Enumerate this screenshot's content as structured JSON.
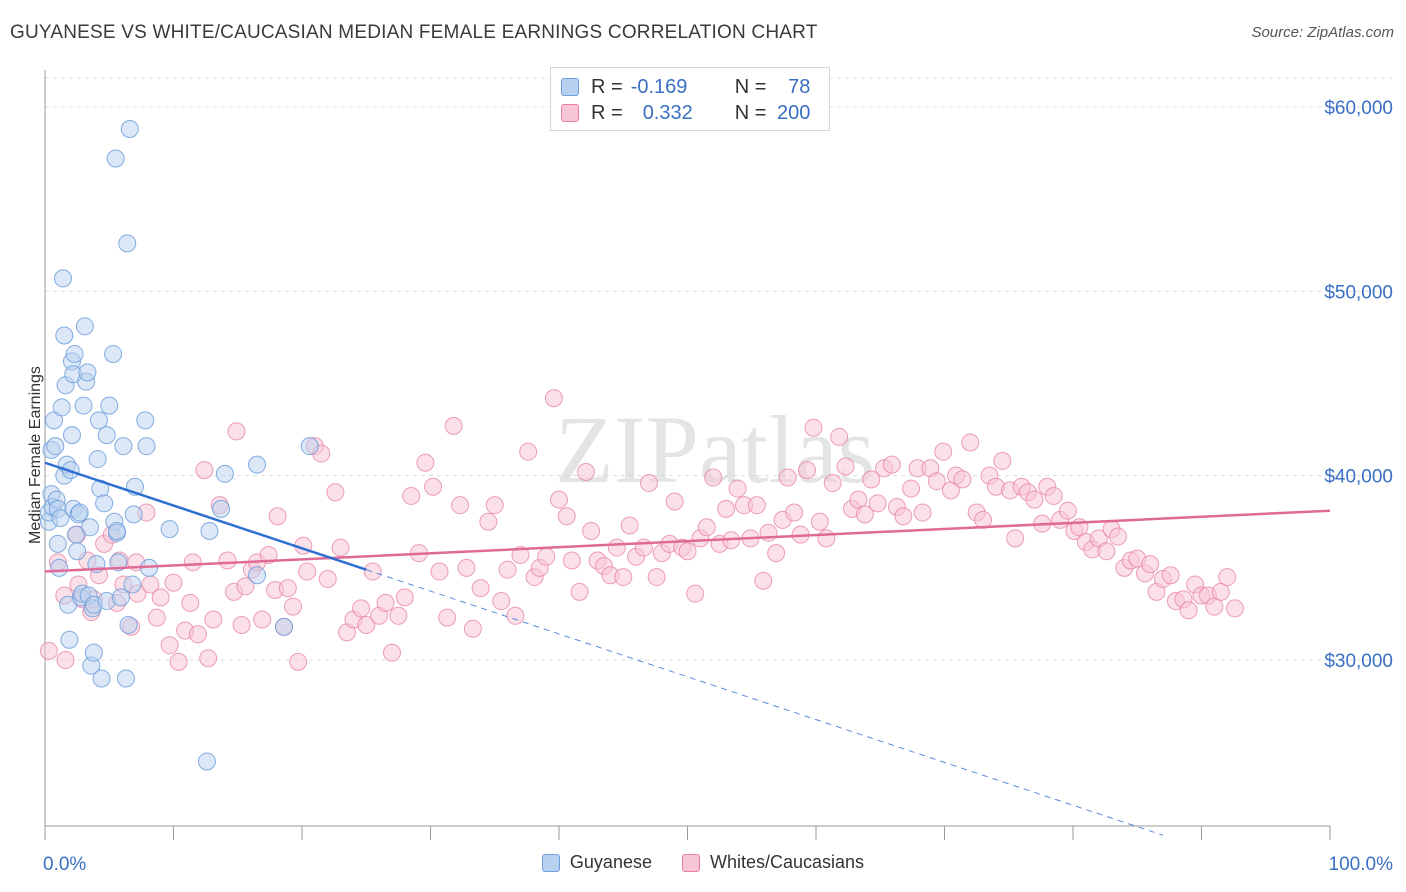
{
  "title": "GUYANESE VS WHITE/CAUCASIAN MEDIAN FEMALE EARNINGS CORRELATION CHART",
  "source": "Source: ZipAtlas.com",
  "watermark": "ZIPatlas",
  "colors": {
    "blue": "#6f9fdc",
    "blue_fill": "#b9d1f0",
    "blue_line": "#2f6fd0",
    "pink": "#e77fa3",
    "pink_fill": "#f7c6d6",
    "pink_line": "#e06a96",
    "tick_text": "#3a6fc4",
    "grid": "#dddddd"
  },
  "legend_top": [
    {
      "r_label": "R =",
      "r_value": "-0.169",
      "n_label": "N =",
      "n_value": "78"
    },
    {
      "r_label": "R =",
      "r_value": "0.332",
      "n_label": "N =",
      "n_value": "200"
    }
  ],
  "legend_bottom": [
    "Guyanese",
    "Whites/Caucasians"
  ],
  "chart_data": {
    "type": "scatter",
    "title": "GUYANESE VS WHITE/CAUCASIAN MEDIAN FEMALE EARNINGS CORRELATION CHART",
    "xlabel": "",
    "ylabel": "Median Female Earnings",
    "xlim": [
      0,
      100
    ],
    "ylim": [
      21000,
      62000
    ],
    "x_tick_labels": [
      "0.0%",
      "100.0%"
    ],
    "y_ticks": [
      30000,
      40000,
      50000,
      60000
    ],
    "y_tick_labels": [
      "$30,000",
      "$40,000",
      "$50,000",
      "$60,000"
    ],
    "grid": true,
    "legend_position": "top-center",
    "series": [
      {
        "name": "Guyanese",
        "color": "#6f9fdc",
        "trend": {
          "x": [
            0,
            25
          ],
          "y": [
            40700,
            34900
          ]
        },
        "trend_extension": {
          "x": [
            25,
            87
          ],
          "y": [
            34900,
            20500
          ]
        },
        "points": [
          [
            0.3,
            37500
          ],
          [
            0.3,
            38000
          ],
          [
            0.5,
            41400
          ],
          [
            0.5,
            39000
          ],
          [
            0.6,
            38300
          ],
          [
            0.7,
            43000
          ],
          [
            0.8,
            41600
          ],
          [
            0.9,
            38700
          ],
          [
            1,
            36300
          ],
          [
            1,
            38200
          ],
          [
            1.1,
            35000
          ],
          [
            1.2,
            37700
          ],
          [
            1.3,
            43700
          ],
          [
            1.4,
            50700
          ],
          [
            1.5,
            47600
          ],
          [
            1.5,
            40000
          ],
          [
            1.6,
            44900
          ],
          [
            1.7,
            40600
          ],
          [
            1.8,
            33000
          ],
          [
            1.9,
            31100
          ],
          [
            2,
            40300
          ],
          [
            2.1,
            42200
          ],
          [
            2.1,
            46200
          ],
          [
            2.2,
            45500
          ],
          [
            2.2,
            38200
          ],
          [
            2.3,
            46600
          ],
          [
            2.4,
            36800
          ],
          [
            2.5,
            35900
          ],
          [
            2.6,
            37900
          ],
          [
            2.7,
            38000
          ],
          [
            2.8,
            33400
          ],
          [
            2.9,
            33600
          ],
          [
            3,
            43800
          ],
          [
            3.1,
            48100
          ],
          [
            3.2,
            45100
          ],
          [
            3.3,
            45600
          ],
          [
            3.4,
            33500
          ],
          [
            3.5,
            37200
          ],
          [
            3.6,
            29700
          ],
          [
            3.7,
            32800
          ],
          [
            3.8,
            30400
          ],
          [
            3.8,
            33000
          ],
          [
            4,
            35200
          ],
          [
            4.1,
            40900
          ],
          [
            4.2,
            43000
          ],
          [
            4.3,
            39300
          ],
          [
            4.4,
            29000
          ],
          [
            4.6,
            38500
          ],
          [
            4.8,
            42200
          ],
          [
            4.8,
            33200
          ],
          [
            5,
            43800
          ],
          [
            5.3,
            46600
          ],
          [
            5.4,
            37500
          ],
          [
            5.5,
            57200
          ],
          [
            5.6,
            36900
          ],
          [
            5.6,
            37000
          ],
          [
            5.7,
            35300
          ],
          [
            5.9,
            33400
          ],
          [
            6.1,
            41600
          ],
          [
            6.3,
            29000
          ],
          [
            6.4,
            52600
          ],
          [
            6.5,
            31900
          ],
          [
            6.6,
            58800
          ],
          [
            6.8,
            34100
          ],
          [
            6.9,
            37900
          ],
          [
            7,
            39400
          ],
          [
            7.8,
            43000
          ],
          [
            7.9,
            41600
          ],
          [
            8.1,
            35000
          ],
          [
            9.7,
            37100
          ],
          [
            12.6,
            24500
          ],
          [
            12.8,
            37000
          ],
          [
            13.7,
            38200
          ],
          [
            14,
            40100
          ],
          [
            16.5,
            40600
          ],
          [
            16.5,
            34600
          ],
          [
            18.6,
            31800
          ],
          [
            20.6,
            41600
          ]
        ]
      },
      {
        "name": "Whites/Caucasians",
        "color": "#e77fa3",
        "trend": {
          "x": [
            0,
            100
          ],
          "y": [
            34800,
            38100
          ]
        },
        "points": [
          [
            0.3,
            30500
          ],
          [
            1,
            35300
          ],
          [
            1.5,
            33500
          ],
          [
            1.6,
            30000
          ],
          [
            2.5,
            36800
          ],
          [
            2.6,
            34100
          ],
          [
            2.9,
            33300
          ],
          [
            3.3,
            35400
          ],
          [
            3.6,
            32600
          ],
          [
            3.8,
            33300
          ],
          [
            4.2,
            34600
          ],
          [
            4.6,
            36300
          ],
          [
            5.2,
            36800
          ],
          [
            5.6,
            33100
          ],
          [
            5.8,
            35400
          ],
          [
            6.1,
            34100
          ],
          [
            6.7,
            31800
          ],
          [
            7.1,
            35300
          ],
          [
            7.2,
            33600
          ],
          [
            7.9,
            38000
          ],
          [
            8.2,
            34100
          ],
          [
            8.7,
            32300
          ],
          [
            9,
            33400
          ],
          [
            9.7,
            30800
          ],
          [
            10,
            34200
          ],
          [
            10.4,
            29900
          ],
          [
            10.9,
            31600
          ],
          [
            11.3,
            33100
          ],
          [
            11.5,
            35300
          ],
          [
            11.9,
            31400
          ],
          [
            12.4,
            40300
          ],
          [
            12.7,
            30100
          ],
          [
            13.1,
            32200
          ],
          [
            13.6,
            38400
          ],
          [
            14.2,
            35400
          ],
          [
            14.7,
            33700
          ],
          [
            14.9,
            42400
          ],
          [
            15.3,
            31900
          ],
          [
            15.6,
            34000
          ],
          [
            16.1,
            34900
          ],
          [
            16.5,
            35300
          ],
          [
            16.9,
            32200
          ],
          [
            17.4,
            35700
          ],
          [
            17.9,
            33800
          ],
          [
            18.1,
            37800
          ],
          [
            18.6,
            31800
          ],
          [
            18.9,
            33900
          ],
          [
            19.3,
            32900
          ],
          [
            19.7,
            29900
          ],
          [
            20.1,
            36200
          ],
          [
            20.4,
            34800
          ],
          [
            21,
            41600
          ],
          [
            21.5,
            41200
          ],
          [
            22,
            34400
          ],
          [
            22.6,
            39100
          ],
          [
            23,
            36100
          ],
          [
            23.5,
            31500
          ],
          [
            24,
            32200
          ],
          [
            24.6,
            32800
          ],
          [
            25,
            31900
          ],
          [
            25.5,
            34800
          ],
          [
            26,
            32400
          ],
          [
            26.5,
            33100
          ],
          [
            27,
            30400
          ],
          [
            27.5,
            32400
          ],
          [
            28,
            33400
          ],
          [
            28.5,
            38900
          ],
          [
            29.1,
            35800
          ],
          [
            29.6,
            40700
          ],
          [
            30.2,
            39400
          ],
          [
            30.7,
            34800
          ],
          [
            31.3,
            32300
          ],
          [
            31.8,
            42700
          ],
          [
            32.3,
            38400
          ],
          [
            32.8,
            35000
          ],
          [
            33.3,
            31700
          ],
          [
            33.9,
            33900
          ],
          [
            34.5,
            37500
          ],
          [
            35,
            38400
          ],
          [
            35.5,
            33200
          ],
          [
            36,
            34900
          ],
          [
            36.6,
            32400
          ],
          [
            37,
            35700
          ],
          [
            37.6,
            41300
          ],
          [
            38.1,
            34500
          ],
          [
            38.5,
            35000
          ],
          [
            39,
            35600
          ],
          [
            39.6,
            44200
          ],
          [
            40,
            38700
          ],
          [
            40.6,
            37800
          ],
          [
            41,
            35400
          ],
          [
            41.6,
            33700
          ],
          [
            42.1,
            40200
          ],
          [
            42.5,
            37000
          ],
          [
            43,
            35400
          ],
          [
            43.5,
            35100
          ],
          [
            44,
            34600
          ],
          [
            44.5,
            36100
          ],
          [
            45,
            34500
          ],
          [
            45.5,
            37300
          ],
          [
            46,
            35600
          ],
          [
            46.6,
            36100
          ],
          [
            47,
            39600
          ],
          [
            47.6,
            34500
          ],
          [
            48,
            35800
          ],
          [
            48.6,
            36300
          ],
          [
            49,
            38600
          ],
          [
            49.6,
            36100
          ],
          [
            50,
            35900
          ],
          [
            50.6,
            33600
          ],
          [
            51,
            36600
          ],
          [
            51.5,
            37200
          ],
          [
            52,
            39900
          ],
          [
            52.5,
            36300
          ],
          [
            53,
            38200
          ],
          [
            53.4,
            36500
          ],
          [
            53.9,
            39300
          ],
          [
            54.4,
            38400
          ],
          [
            54.9,
            36600
          ],
          [
            55.4,
            38400
          ],
          [
            55.9,
            34300
          ],
          [
            56.3,
            36900
          ],
          [
            56.9,
            35800
          ],
          [
            57.4,
            37600
          ],
          [
            57.8,
            39900
          ],
          [
            58.3,
            38000
          ],
          [
            58.8,
            36800
          ],
          [
            59.3,
            40300
          ],
          [
            59.8,
            42600
          ],
          [
            60.3,
            37500
          ],
          [
            60.8,
            36600
          ],
          [
            61.3,
            39600
          ],
          [
            61.8,
            42100
          ],
          [
            62.3,
            40500
          ],
          [
            62.8,
            38200
          ],
          [
            63.3,
            38700
          ],
          [
            63.8,
            37900
          ],
          [
            64.3,
            39800
          ],
          [
            64.8,
            38500
          ],
          [
            65.3,
            40400
          ],
          [
            65.9,
            40600
          ],
          [
            66.3,
            38300
          ],
          [
            66.8,
            37800
          ],
          [
            67.4,
            39300
          ],
          [
            67.9,
            40400
          ],
          [
            68.3,
            38000
          ],
          [
            68.9,
            40400
          ],
          [
            69.4,
            39700
          ],
          [
            69.9,
            41300
          ],
          [
            70.5,
            39200
          ],
          [
            70.9,
            40000
          ],
          [
            71.4,
            39800
          ],
          [
            72,
            41800
          ],
          [
            72.5,
            38000
          ],
          [
            73,
            37600
          ],
          [
            73.5,
            40000
          ],
          [
            74,
            39400
          ],
          [
            74.5,
            40800
          ],
          [
            75.1,
            39200
          ],
          [
            75.5,
            36600
          ],
          [
            76,
            39400
          ],
          [
            76.5,
            39100
          ],
          [
            77,
            38700
          ],
          [
            77.6,
            37400
          ],
          [
            78,
            39400
          ],
          [
            78.5,
            38900
          ],
          [
            79,
            37600
          ],
          [
            79.6,
            38100
          ],
          [
            80.1,
            37000
          ],
          [
            80.5,
            37200
          ],
          [
            81,
            36400
          ],
          [
            81.5,
            36000
          ],
          [
            82,
            36600
          ],
          [
            82.6,
            35900
          ],
          [
            83,
            37100
          ],
          [
            83.5,
            36700
          ],
          [
            84,
            35000
          ],
          [
            84.5,
            35400
          ],
          [
            85,
            35500
          ],
          [
            85.6,
            34700
          ],
          [
            86,
            35200
          ],
          [
            86.5,
            33700
          ],
          [
            87,
            34400
          ],
          [
            87.6,
            34600
          ],
          [
            88,
            33200
          ],
          [
            88.6,
            33300
          ],
          [
            89,
            32700
          ],
          [
            89.5,
            34100
          ],
          [
            90,
            33500
          ],
          [
            90.5,
            33500
          ],
          [
            91,
            32900
          ],
          [
            91.5,
            33700
          ],
          [
            92,
            34500
          ],
          [
            92.6,
            32800
          ]
        ]
      }
    ]
  }
}
